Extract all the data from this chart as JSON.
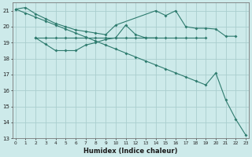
{
  "xlabel": "Humidex (Indice chaleur)",
  "bg_color": "#cdeaea",
  "grid_color": "#aacece",
  "line_color": "#2e7b6e",
  "ylim": [
    13,
    21.5
  ],
  "yticks": [
    13,
    14,
    15,
    16,
    17,
    18,
    19,
    20,
    21
  ],
  "xlim": [
    -0.3,
    23.3
  ],
  "xticks": [
    0,
    1,
    2,
    3,
    4,
    5,
    6,
    7,
    8,
    9,
    10,
    11,
    12,
    13,
    14,
    15,
    16,
    17,
    18,
    19,
    20,
    21,
    22,
    23
  ],
  "line1_x": [
    0,
    1,
    2,
    3,
    4,
    5,
    6,
    7,
    8,
    9,
    10,
    14,
    15,
    16,
    17,
    18,
    19,
    20,
    21,
    22
  ],
  "line1_y": [
    21.1,
    21.2,
    20.8,
    20.5,
    20.2,
    20.0,
    19.8,
    19.7,
    19.6,
    19.5,
    20.1,
    21.0,
    20.7,
    21.0,
    20.0,
    19.9,
    19.9,
    19.85,
    19.4,
    19.4
  ],
  "line2_x": [
    2,
    3,
    4,
    5,
    6,
    7,
    8,
    9,
    10,
    11,
    12,
    13,
    14
  ],
  "line2_y": [
    19.3,
    18.9,
    18.5,
    18.5,
    18.5,
    18.85,
    19.0,
    19.2,
    19.3,
    20.1,
    19.5,
    19.3,
    19.3
  ],
  "line3_x": [
    2,
    3,
    4,
    5,
    6,
    7,
    8,
    9,
    10,
    11,
    12,
    13,
    14,
    15,
    16,
    17,
    18,
    19
  ],
  "line3_y": [
    19.3,
    19.3,
    19.3,
    19.3,
    19.3,
    19.3,
    19.3,
    19.3,
    19.3,
    19.3,
    19.3,
    19.3,
    19.3,
    19.3,
    19.3,
    19.3,
    19.3,
    19.3
  ],
  "line4_x": [
    0,
    1,
    2,
    3,
    4,
    5,
    6,
    7,
    8,
    9,
    10,
    11,
    12,
    13,
    14,
    15,
    16,
    17,
    18,
    19,
    20,
    21,
    22,
    23
  ],
  "line4_y": [
    21.1,
    20.85,
    20.6,
    20.35,
    20.1,
    19.85,
    19.6,
    19.35,
    19.1,
    18.85,
    18.6,
    18.35,
    18.1,
    17.85,
    17.6,
    17.35,
    17.1,
    16.85,
    16.6,
    16.35,
    17.1,
    15.4,
    14.2,
    13.2
  ]
}
